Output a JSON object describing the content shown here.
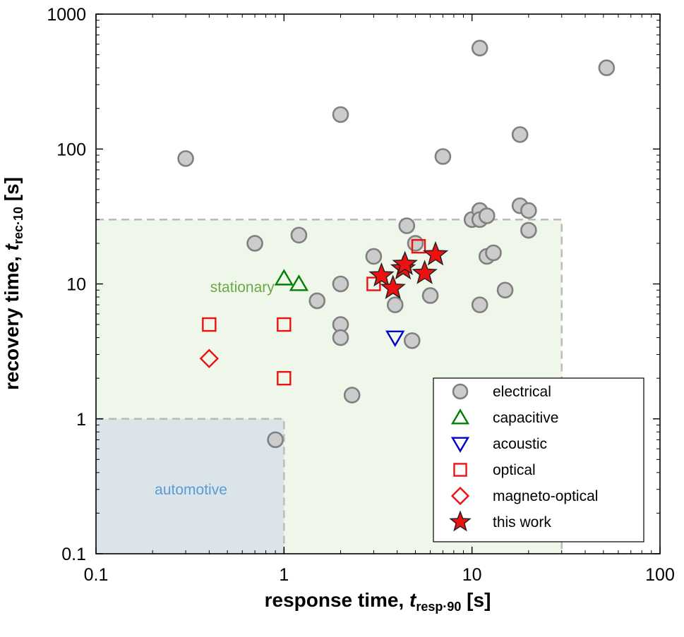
{
  "chart_data": {
    "type": "scatter",
    "xscale": "log",
    "yscale": "log",
    "xlim": [
      0.1,
      100
    ],
    "ylim": [
      0.1,
      1000
    ],
    "xticks": [
      "0.1",
      "1",
      "10",
      "100"
    ],
    "yticks": [
      "0.1",
      "1",
      "10",
      "100",
      "1000"
    ],
    "xlabel": {
      "main": "response time, ",
      "var": "t",
      "sub": "resp·90",
      "unit": " [s]"
    },
    "ylabel": {
      "main": "recovery time, ",
      "var": "t",
      "sub": "rec·10",
      "unit": " [s]"
    },
    "regions": [
      {
        "label": "stationary",
        "x": [
          0.1,
          30
        ],
        "y": [
          0.1,
          30
        ],
        "color": "#eff6ea",
        "text_color": "#6aaa44"
      },
      {
        "label": "automotive",
        "x": [
          0.1,
          1
        ],
        "y": [
          0.1,
          1
        ],
        "color": "#dbe4e8",
        "text_color": "#5b9bd5"
      }
    ],
    "legend_position": "bottom-right",
    "series": [
      {
        "name": "electrical",
        "marker": "circle",
        "color": "#808080",
        "points": [
          [
            0.3,
            85
          ],
          [
            0.7,
            20
          ],
          [
            0.9,
            0.7
          ],
          [
            1.2,
            23
          ],
          [
            1.5,
            7.5
          ],
          [
            2.0,
            180
          ],
          [
            2.0,
            10
          ],
          [
            2.0,
            5
          ],
          [
            2.0,
            4
          ],
          [
            2.3,
            1.5
          ],
          [
            3.0,
            16
          ],
          [
            3.9,
            7
          ],
          [
            4.5,
            27
          ],
          [
            4.8,
            3.8
          ],
          [
            5.0,
            20
          ],
          [
            6.0,
            8.2
          ],
          [
            7.0,
            88
          ],
          [
            10.0,
            30
          ],
          [
            11.0,
            560
          ],
          [
            11.0,
            35
          ],
          [
            11.0,
            30
          ],
          [
            11.0,
            7
          ],
          [
            12.0,
            32
          ],
          [
            12.0,
            16
          ],
          [
            13.0,
            17
          ],
          [
            15.0,
            9
          ],
          [
            18.0,
            128
          ],
          [
            18.0,
            38
          ],
          [
            20.0,
            35
          ],
          [
            20.0,
            25
          ],
          [
            52.0,
            400
          ]
        ]
      },
      {
        "name": "capacitive",
        "marker": "triangle-up",
        "color": "#008000",
        "points": [
          [
            1.0,
            11
          ],
          [
            1.2,
            10
          ]
        ]
      },
      {
        "name": "acoustic",
        "marker": "triangle-down",
        "color": "#0000cc",
        "points": [
          [
            3.9,
            4.0
          ]
        ]
      },
      {
        "name": "optical",
        "marker": "square",
        "color": "#ee1111",
        "points": [
          [
            0.4,
            5
          ],
          [
            1.0,
            5
          ],
          [
            1.0,
            2
          ],
          [
            3.0,
            10
          ],
          [
            5.2,
            19
          ]
        ]
      },
      {
        "name": "magneto-optical",
        "marker": "diamond",
        "color": "#ee1111",
        "points": [
          [
            0.4,
            2.8
          ]
        ]
      },
      {
        "name": "this work",
        "marker": "star",
        "color": "#ee1111",
        "points": [
          [
            3.3,
            11.5
          ],
          [
            3.8,
            9.3
          ],
          [
            4.3,
            13
          ],
          [
            4.4,
            14
          ],
          [
            5.6,
            12
          ],
          [
            6.4,
            16.5
          ]
        ]
      }
    ]
  }
}
